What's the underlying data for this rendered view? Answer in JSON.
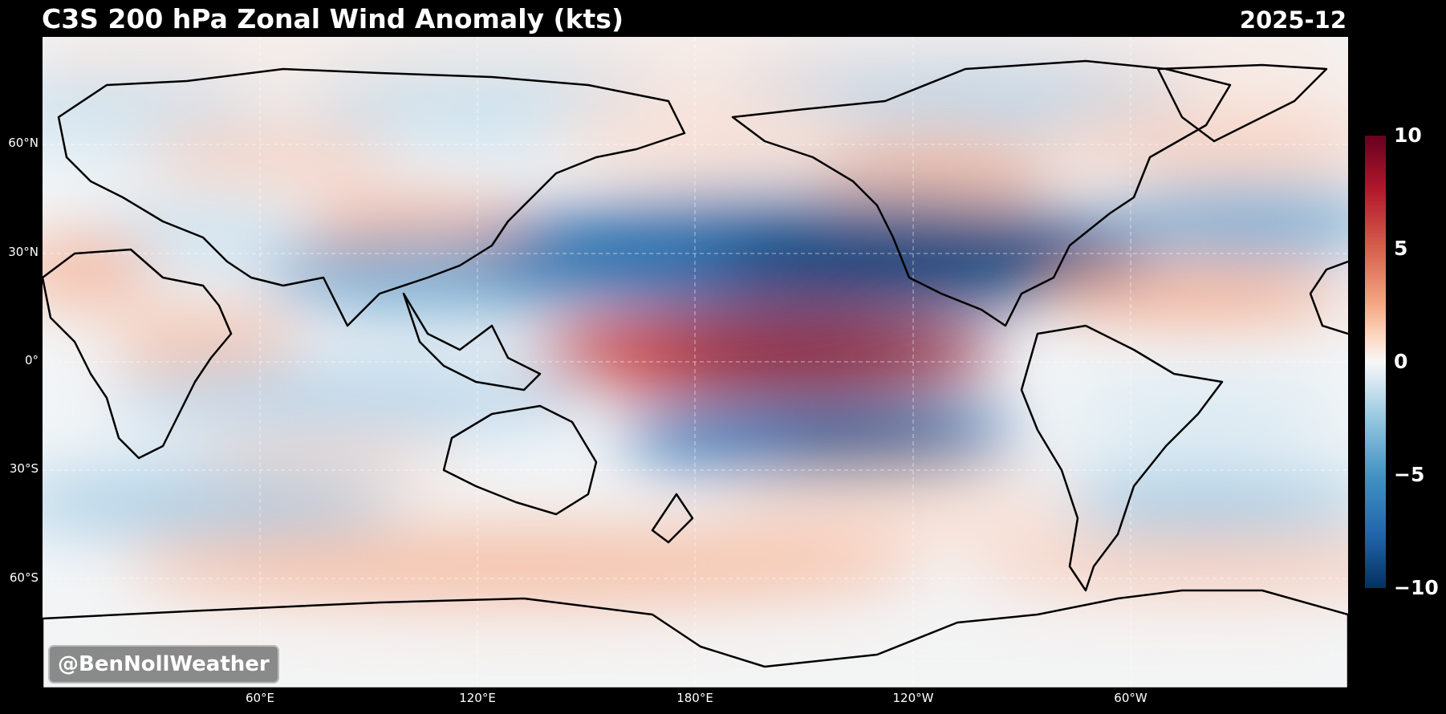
{
  "title": "C3S 200 hPa Zonal Wind Anomaly (kts)",
  "date": "2025-12",
  "watermark": "@BenNollWeather",
  "lat_labels": [
    "60°N",
    "30°N",
    "0°",
    "30°S",
    "60°S"
  ],
  "lon_labels": [
    "60°E",
    "120°E",
    "180°E",
    "120°W",
    "60°W"
  ],
  "colorbar": {
    "ticks": [
      "10",
      "5",
      "0",
      "−5",
      "−10"
    ],
    "min": -10,
    "max": 10,
    "colormap": "RdBu_r",
    "colors": {
      "high": "#67001f",
      "mid": "#f7f7f7",
      "low": "#053061"
    }
  }
}
